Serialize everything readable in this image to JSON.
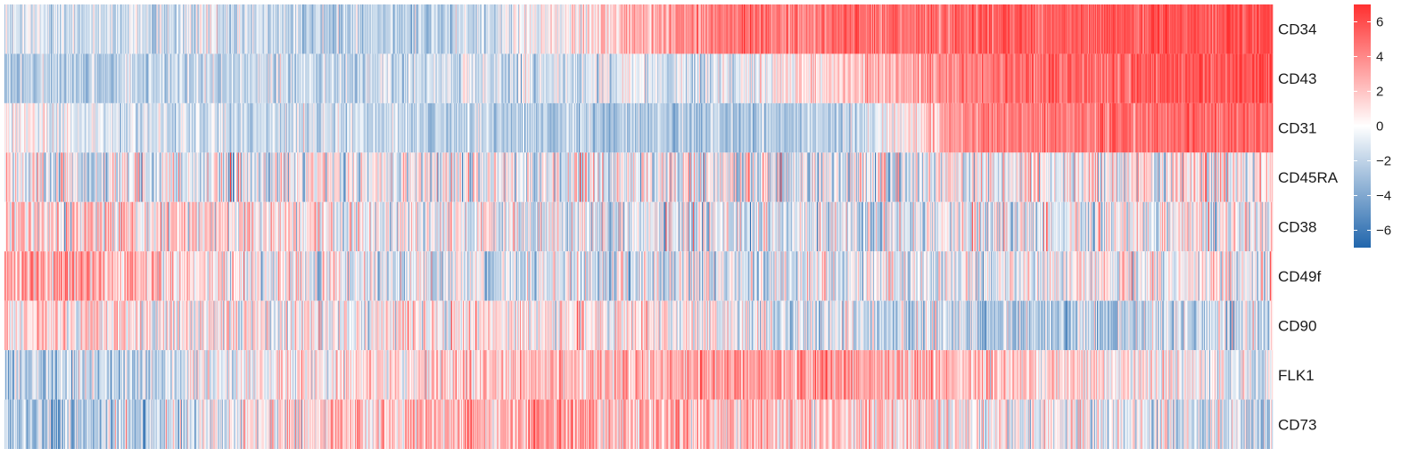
{
  "chart_data": {
    "type": "heatmap",
    "title": "",
    "xlabel": "",
    "ylabel": "",
    "rows": [
      "CD34",
      "CD43",
      "CD31",
      "CD45RA",
      "CD38",
      "CD49f",
      "CD90",
      "FLK1",
      "CD73"
    ],
    "n_columns": 1400,
    "row_profiles": [
      {
        "name": "CD34",
        "means": [
          -1.5,
          -1.0,
          -1.5,
          -1.8,
          0.3,
          4.0,
          4.5,
          5.0,
          5.5,
          6.0
        ],
        "noise": 1.2
      },
      {
        "name": "CD43",
        "means": [
          -1.8,
          -1.5,
          -1.5,
          -1.2,
          -1.0,
          -0.8,
          1.5,
          4.5,
          5.0,
          6.0
        ],
        "noise": 1.2
      },
      {
        "name": "CD31",
        "means": [
          0.0,
          -1.0,
          -1.2,
          -1.6,
          -2.0,
          -2.2,
          -1.5,
          4.0,
          4.5,
          5.0
        ],
        "noise": 1.1
      },
      {
        "name": "CD45RA",
        "means": [
          -0.3,
          -0.2,
          -0.4,
          -0.2,
          -0.3,
          -0.2,
          -0.4,
          -0.1,
          0.2,
          0.4
        ],
        "noise": 2.2
      },
      {
        "name": "CD38",
        "means": [
          1.2,
          1.2,
          0.5,
          0.0,
          -0.3,
          -0.8,
          -0.6,
          -0.6,
          -0.4,
          0.3
        ],
        "noise": 2.0
      },
      {
        "name": "CD49f",
        "means": [
          3.0,
          1.5,
          0.0,
          -0.8,
          -1.0,
          -0.8,
          -0.5,
          -0.3,
          0.0,
          0.3
        ],
        "noise": 1.8
      },
      {
        "name": "CD90",
        "means": [
          1.0,
          0.5,
          0.2,
          0.5,
          0.5,
          0.0,
          -1.2,
          -1.8,
          -2.0,
          -1.0
        ],
        "noise": 1.8
      },
      {
        "name": "FLK1",
        "means": [
          -2.2,
          -1.2,
          0.5,
          1.0,
          2.0,
          3.0,
          3.0,
          1.5,
          0.5,
          -0.5
        ],
        "noise": 1.6
      },
      {
        "name": "CD73",
        "means": [
          -2.5,
          -1.5,
          0.8,
          2.0,
          2.5,
          2.0,
          1.5,
          0.5,
          -0.5,
          -1.5
        ],
        "noise": 1.8
      }
    ],
    "color_scale": {
      "min": -7,
      "max": 7,
      "low_color": "#2166ac",
      "mid_color": "#ffffff",
      "high_color": "#ff3030"
    },
    "legend": {
      "placement": "right",
      "ticks": [
        "6",
        "4",
        "2",
        "0",
        "−2",
        "−4",
        "−6"
      ],
      "tick_values": [
        6,
        4,
        2,
        0,
        -2,
        -4,
        -6
      ]
    },
    "seed": 20240517
  }
}
